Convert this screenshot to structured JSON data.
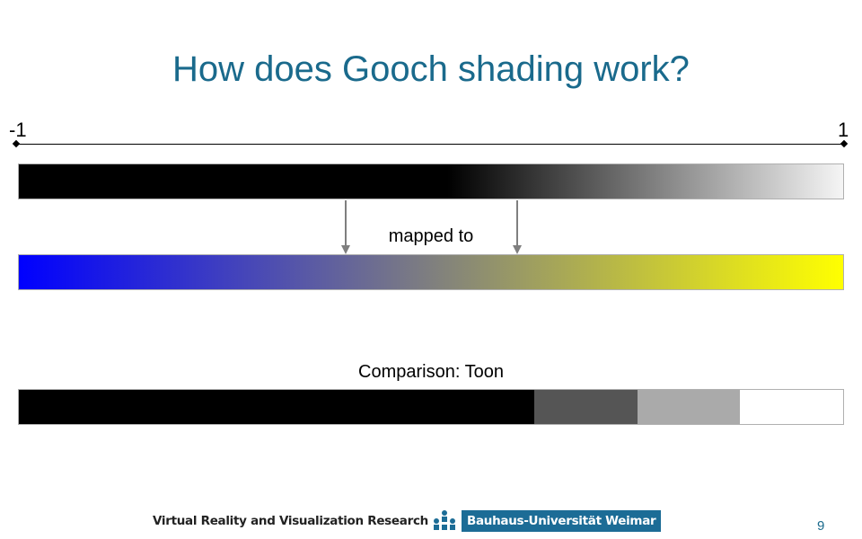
{
  "slide": {
    "title": "How does Gooch shading work?",
    "page_number": "9"
  },
  "axis": {
    "min_label": "-1",
    "max_label": "1"
  },
  "labels": {
    "mapped_to": "mapped to",
    "comparison": "Comparison: Toon"
  },
  "gradients": {
    "grayscale": {
      "stops": [
        "#000000",
        "#000000",
        "#f5f5f5"
      ],
      "stop_positions": [
        0,
        0.52,
        1
      ]
    },
    "gooch": {
      "stops": [
        "#0000ff",
        "#7f7f7f",
        "#ffff00"
      ],
      "stop_positions": [
        0,
        0.5,
        1
      ]
    }
  },
  "toon_bands": [
    {
      "color": "#000000",
      "fraction": 0.625
    },
    {
      "color": "#555555",
      "fraction": 0.125
    },
    {
      "color": "#aaaaaa",
      "fraction": 0.125
    },
    {
      "color": "#ffffff",
      "fraction": 0.125
    }
  ],
  "footer": {
    "group": "Virtual Reality and Visualization Research",
    "university": "Bauhaus-Universität Weimar"
  },
  "colors": {
    "title": "#1a6a8c",
    "logo_blue": "#1c6c96",
    "arrow": "#7f7f7f"
  }
}
